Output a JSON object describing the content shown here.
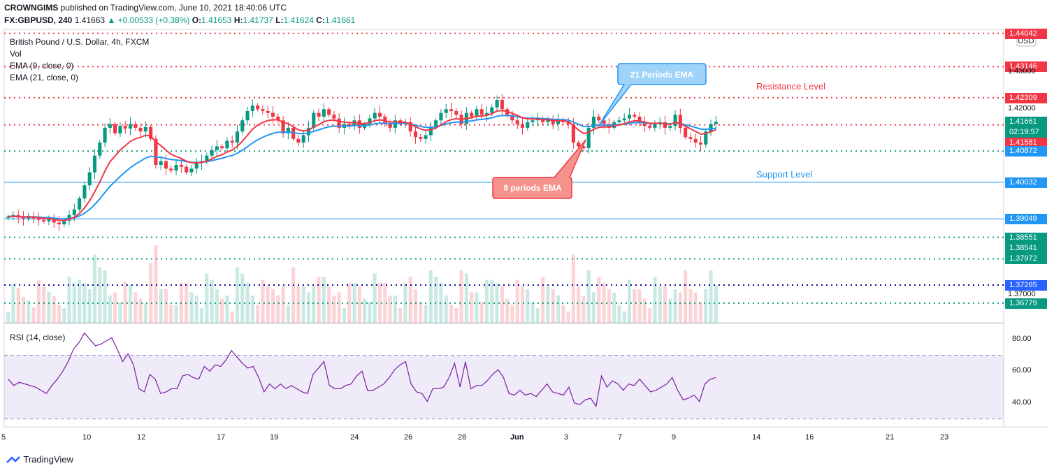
{
  "header": {
    "publisher": "CROWNGIMS",
    "published_text": "published on TradingView.com, June 10, 2021 18:40:06 UTC",
    "symbol": "FX:GBPUSD, 240",
    "last": "1.41663",
    "change": "▲ +0.00533 (+0.38%)",
    "o_label": "O:",
    "o": "1.41653",
    "h_label": "H:",
    "h": "1.41737",
    "l_label": "L:",
    "l": "1.41624",
    "c_label": "C:",
    "c": "1.41661"
  },
  "legend": {
    "title": "British Pound / U.S. Dollar, 4h, FXCM",
    "vol": "Vol",
    "ema9": "EMA (9, close, 0)",
    "ema21": "EMA (21, close, 0)",
    "rsi": "RSI (14, close)"
  },
  "currency_badge": "USD",
  "annotations": {
    "resistance": "Resistance Level",
    "support": "Support Level",
    "ema21_callout": "21 Periods EMA",
    "ema9_callout": "9 periods EMA"
  },
  "price_axis": {
    "labels": [
      "1.43000",
      "1.42000",
      "1.37000"
    ],
    "tags": [
      {
        "text": "1.44042",
        "color": "#f23645"
      },
      {
        "text": "1.43146",
        "color": "#f23645"
      },
      {
        "text": "1.42309",
        "color": "#f23645"
      },
      {
        "text": "1.41661",
        "color": "#089981"
      },
      {
        "text": "02:19:57",
        "color": "#089981"
      },
      {
        "text": "1.41581",
        "color": "#f23645"
      },
      {
        "text": "1.40872",
        "color": "#2196f3"
      },
      {
        "text": "1.40032",
        "color": "#2196f3"
      },
      {
        "text": "1.39049",
        "color": "#2196f3"
      },
      {
        "text": "1.38551",
        "color": "#089981"
      },
      {
        "text": "1.38541",
        "color": "#089981"
      },
      {
        "text": "1.37972",
        "color": "#089981"
      },
      {
        "text": "1.37265",
        "color": "#2962ff"
      },
      {
        "text": "1.36779",
        "color": "#089981"
      }
    ]
  },
  "rsi_axis": [
    "80.00",
    "60.00",
    "40.00"
  ],
  "time_axis": [
    "5",
    "10",
    "12",
    "17",
    "19",
    "24",
    "26",
    "28",
    "Jun",
    "3",
    "7",
    "9",
    "14",
    "16",
    "21",
    "23"
  ],
  "brand": "TradingView",
  "chart_data": {
    "type": "candlestick",
    "title": "British Pound / U.S. Dollar, 4h, FXCM",
    "ylim": [
      1.3625,
      1.4415
    ],
    "rsi_ylim": [
      25,
      90
    ],
    "horizontal_levels": [
      {
        "price": 1.44042,
        "color": "#f23645",
        "style": "dotted"
      },
      {
        "price": 1.43146,
        "color": "#f23645",
        "style": "dotted"
      },
      {
        "price": 1.42309,
        "color": "#f23645",
        "style": "dotted"
      },
      {
        "price": 1.41581,
        "color": "#f23645",
        "style": "dotted"
      },
      {
        "price": 1.40872,
        "color": "#089981",
        "style": "dotted"
      },
      {
        "price": 1.40032,
        "color": "#2196f3",
        "style": "solid"
      },
      {
        "price": 1.39049,
        "color": "#2196f3",
        "style": "solid"
      },
      {
        "price": 1.38551,
        "color": "#089981",
        "style": "dotted"
      },
      {
        "price": 1.37972,
        "color": "#089981",
        "style": "dotted"
      },
      {
        "price": 1.37265,
        "color": "#0c0c8c",
        "style": "dotted"
      },
      {
        "price": 1.36779,
        "color": "#089981",
        "style": "dotted"
      }
    ],
    "close": [
      1.3911,
      1.3915,
      1.3908,
      1.3905,
      1.3912,
      1.3906,
      1.3902,
      1.3898,
      1.3904,
      1.3895,
      1.389,
      1.39,
      1.3915,
      1.393,
      1.396,
      1.3995,
      1.403,
      1.4075,
      1.411,
      1.415,
      1.416,
      1.4135,
      1.4155,
      1.4148,
      1.416,
      1.415,
      1.414,
      1.4152,
      1.412,
      1.405,
      1.406,
      1.404,
      1.4035,
      1.405,
      1.4045,
      1.403,
      1.404,
      1.4055,
      1.406,
      1.4075,
      1.409,
      1.41,
      1.4095,
      1.4115,
      1.411,
      1.414,
      1.417,
      1.4195,
      1.421,
      1.42,
      1.4195,
      1.419,
      1.418,
      1.417,
      1.4135,
      1.415,
      1.412,
      1.411,
      1.413,
      1.415,
      1.419,
      1.418,
      1.42,
      1.4185,
      1.4175,
      1.415,
      1.416,
      1.4155,
      1.417,
      1.415,
      1.416,
      1.4175,
      1.419,
      1.418,
      1.416,
      1.415,
      1.417,
      1.416,
      1.4165,
      1.414,
      1.4125,
      1.412,
      1.413,
      1.415,
      1.417,
      1.419,
      1.42,
      1.4195,
      1.4185,
      1.416,
      1.419,
      1.418,
      1.42,
      1.4185,
      1.419,
      1.4205,
      1.4225,
      1.42,
      1.4185,
      1.417,
      1.416,
      1.415,
      1.4165,
      1.417,
      1.4175,
      1.4165,
      1.417,
      1.416,
      1.417,
      1.4165,
      1.416,
      1.411,
      1.41,
      1.4095,
      1.415,
      1.418,
      1.417,
      1.416,
      1.415,
      1.4165,
      1.417,
      1.4175,
      1.4185,
      1.418,
      1.4165,
      1.4155,
      1.415,
      1.416,
      1.4165,
      1.415,
      1.4155,
      1.4185,
      1.415,
      1.4125,
      1.412,
      1.411,
      1.4105,
      1.414,
      1.416,
      1.4166
    ],
    "rsi": [
      55,
      51,
      53,
      52,
      51,
      50,
      48,
      46,
      51,
      55,
      60,
      66,
      74,
      78,
      84,
      80,
      76,
      77,
      79,
      81,
      74,
      66,
      71,
      64,
      49,
      47,
      58,
      55,
      46,
      47,
      49,
      49,
      57,
      58,
      56,
      55,
      63,
      60,
      64,
      63,
      67,
      73,
      69,
      65,
      62,
      63,
      56,
      47,
      52,
      49,
      52,
      49,
      51,
      49,
      47,
      46,
      58,
      62,
      66,
      51,
      49,
      49,
      51,
      52,
      57,
      60,
      48,
      48,
      50,
      52,
      56,
      61,
      64,
      66,
      52,
      47,
      46,
      41,
      49,
      49,
      50,
      56,
      65,
      50,
      66,
      49,
      51,
      51,
      54,
      58,
      61,
      56,
      46,
      45,
      48,
      45,
      46,
      44,
      48,
      52,
      47,
      46,
      45,
      50,
      40,
      39,
      42,
      43,
      38,
      57,
      50,
      54,
      52,
      48,
      52,
      51,
      55,
      51,
      47,
      48,
      50,
      52,
      56,
      48,
      42,
      43,
      45,
      41,
      52,
      55,
      56
    ]
  }
}
